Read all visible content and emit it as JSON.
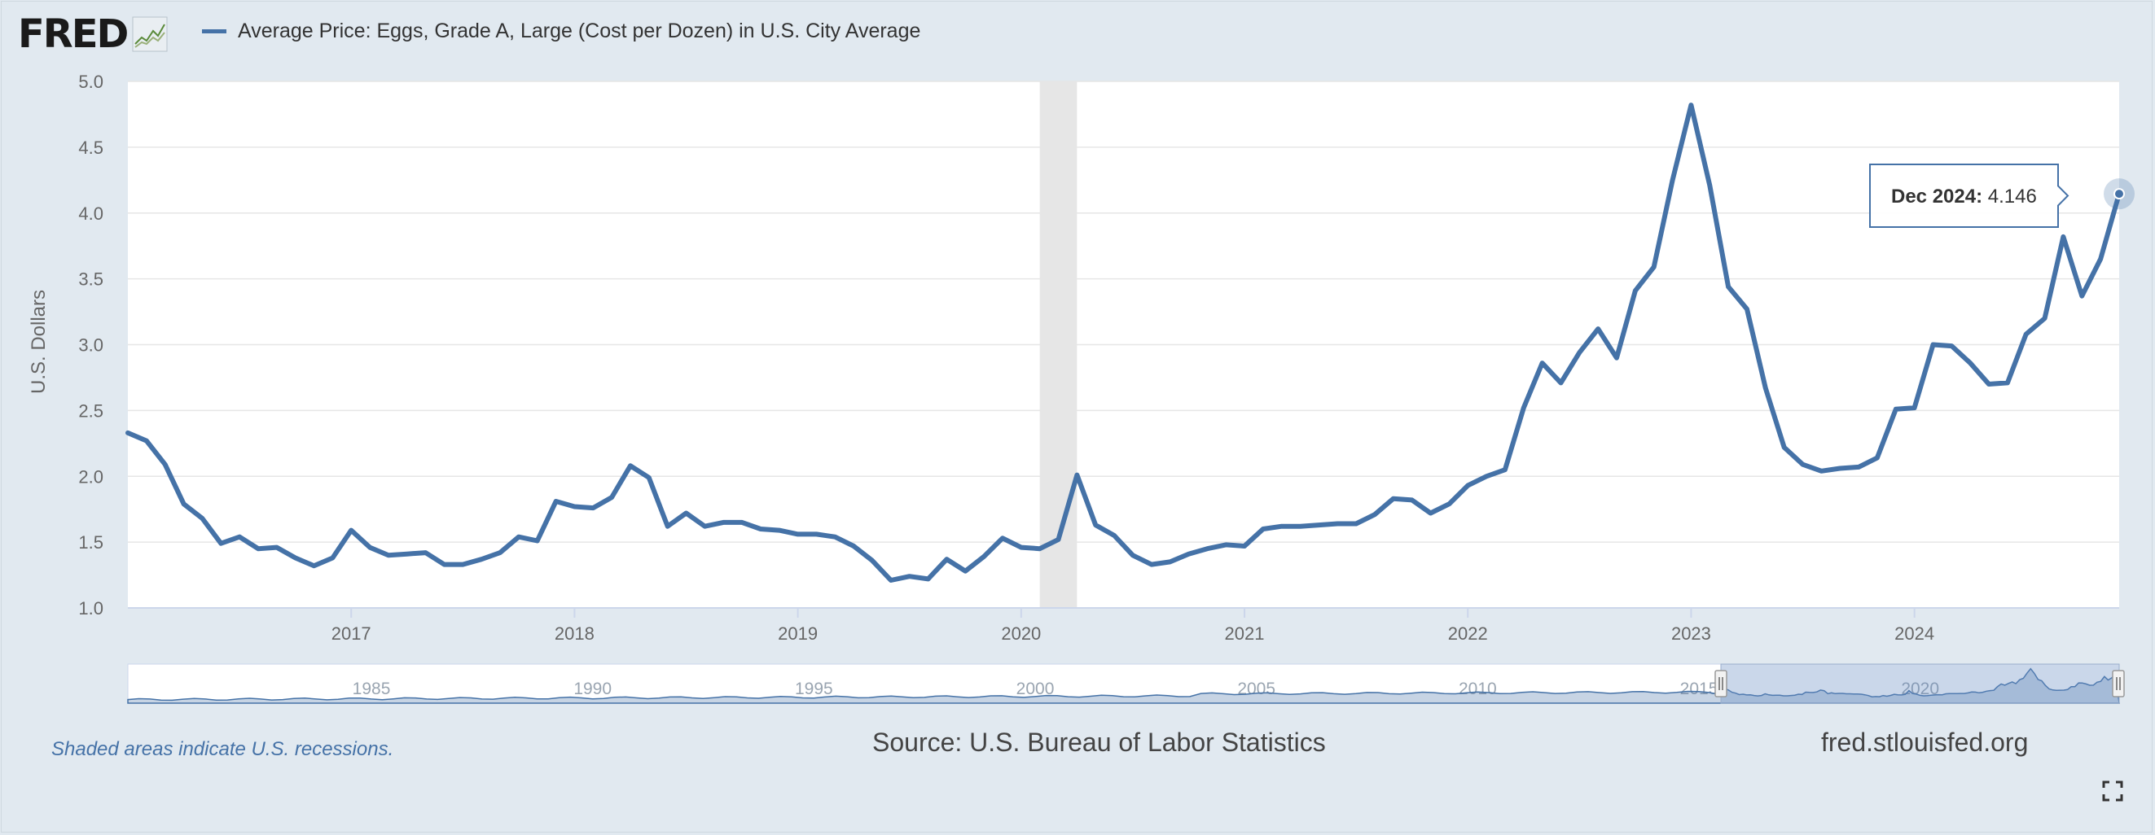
{
  "brand": {
    "logo_text": "FRED",
    "logo_icon": "fred-chart-icon"
  },
  "colors": {
    "series": "#4572a7",
    "background": "#e1e9f0",
    "recession": "#e6e6e6",
    "plot_bg": "#ffffff"
  },
  "footer": {
    "recession_note": "Shaded areas indicate U.S. recessions.",
    "source": "Source: U.S. Bureau of Labor Statistics",
    "site": "fred.stlouisfed.org",
    "fullscreen_icon": "fullscreen-icon"
  },
  "chart_data": {
    "type": "line",
    "title": "Average Price: Eggs, Grade A, Large (Cost per Dozen) in U.S. City Average",
    "xlabel": "",
    "ylabel": "U.S. Dollars",
    "ylim": [
      1.0,
      5.0
    ],
    "y_ticks": [
      "1.0",
      "1.5",
      "2.0",
      "2.5",
      "3.0",
      "3.5",
      "4.0",
      "4.5",
      "5.0"
    ],
    "x_ticks": [
      "2017",
      "2018",
      "2019",
      "2020",
      "2021",
      "2022",
      "2023",
      "2024"
    ],
    "x_start": "2016-01",
    "x_end": "2024-12",
    "grid": true,
    "legend": "top-left",
    "recessions": [
      {
        "start": "2020-02",
        "end": "2020-04"
      }
    ],
    "series": [
      {
        "name": "Average Price: Eggs, Grade A, Large (Cost per Dozen) in U.S. City Average",
        "start": "2016-01",
        "frequency": "monthly",
        "values": [
          2.33,
          2.27,
          2.09,
          1.79,
          1.68,
          1.49,
          1.54,
          1.45,
          1.46,
          1.38,
          1.32,
          1.38,
          1.59,
          1.46,
          1.4,
          1.41,
          1.42,
          1.33,
          1.33,
          1.37,
          1.42,
          1.54,
          1.51,
          1.81,
          1.77,
          1.76,
          1.84,
          2.08,
          1.99,
          1.62,
          1.72,
          1.62,
          1.65,
          1.65,
          1.6,
          1.59,
          1.56,
          1.56,
          1.54,
          1.47,
          1.36,
          1.21,
          1.24,
          1.22,
          1.37,
          1.28,
          1.39,
          1.53,
          1.46,
          1.45,
          1.52,
          2.01,
          1.63,
          1.55,
          1.4,
          1.33,
          1.35,
          1.41,
          1.45,
          1.48,
          1.47,
          1.6,
          1.62,
          1.62,
          1.63,
          1.64,
          1.64,
          1.71,
          1.83,
          1.82,
          1.72,
          1.79,
          1.93,
          2.0,
          2.05,
          2.52,
          2.86,
          2.71,
          2.94,
          3.12,
          2.9,
          3.41,
          3.59,
          4.25,
          4.82,
          4.21,
          3.44,
          3.27,
          2.67,
          2.22,
          2.09,
          2.04,
          2.06,
          2.07,
          2.14,
          2.51,
          2.52,
          3.0,
          2.99,
          2.86,
          2.7,
          2.71,
          3.08,
          3.2,
          3.82,
          3.37,
          3.65,
          4.146
        ]
      }
    ],
    "navigator": {
      "x_ticks": [
        "1985",
        "1990",
        "1995",
        "2000",
        "2005",
        "2010",
        "2015",
        "2020"
      ],
      "start_year": 1980,
      "end_year": 2025
    },
    "tooltip": {
      "date": "Dec 2024",
      "value": "4.146"
    }
  }
}
